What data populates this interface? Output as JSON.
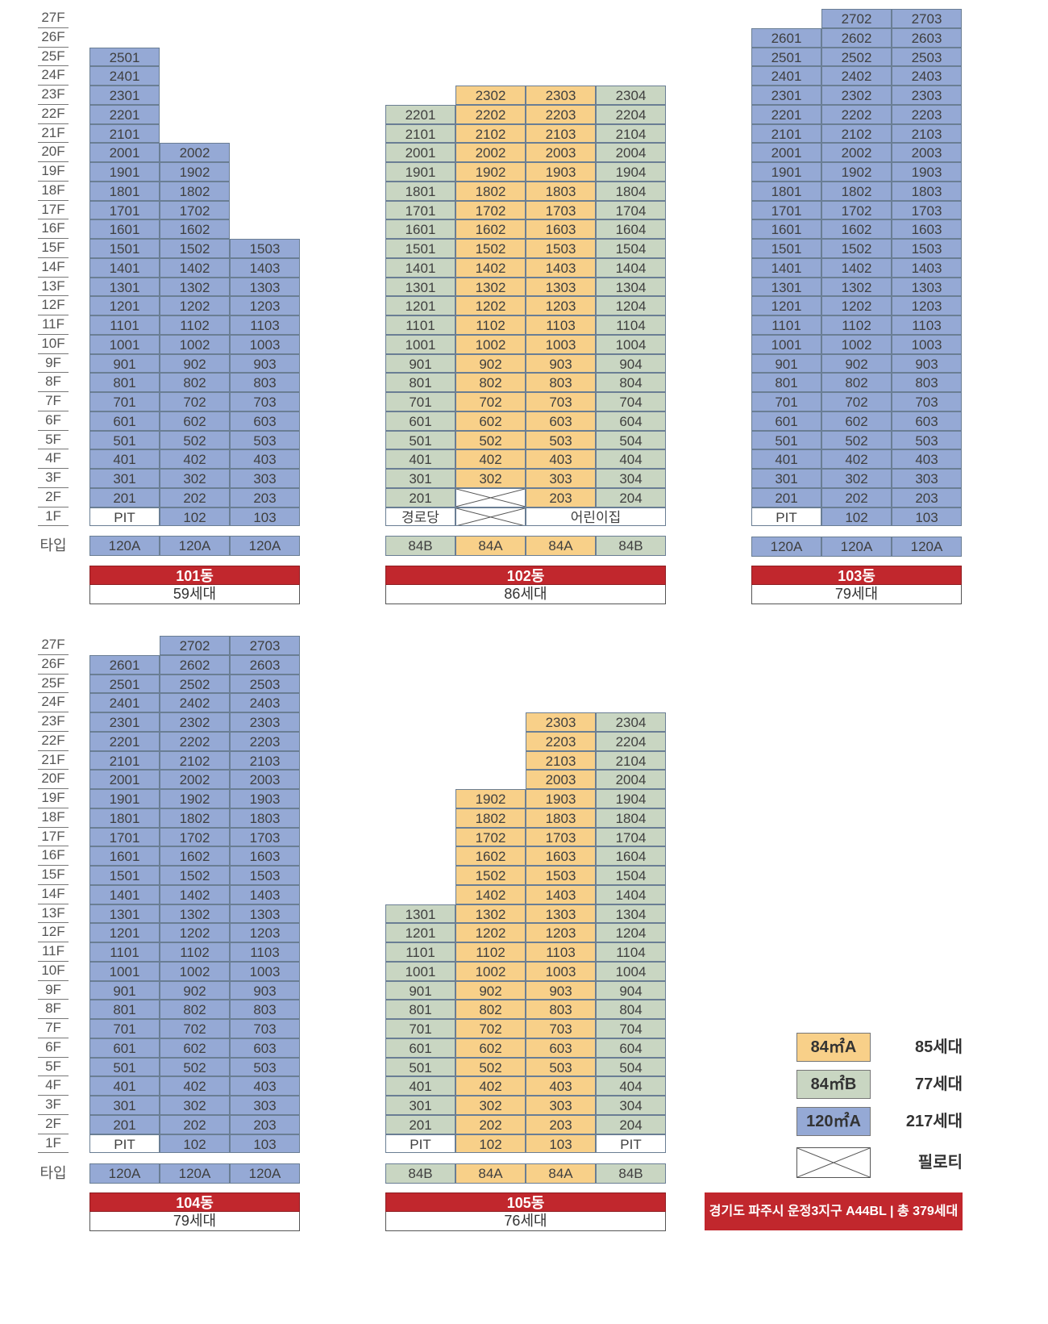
{
  "colors": {
    "120A": "#95a9d5",
    "84A": "#f8d089",
    "84B": "#c9d6c2"
  },
  "floors": [
    "27F",
    "26F",
    "25F",
    "24F",
    "23F",
    "22F",
    "21F",
    "20F",
    "19F",
    "18F",
    "17F",
    "16F",
    "15F",
    "14F",
    "13F",
    "12F",
    "11F",
    "10F",
    "9F",
    "8F",
    "7F",
    "6F",
    "5F",
    "4F",
    "3F",
    "2F",
    "1F"
  ],
  "type_row_label": "타입",
  "pilotis_icon": "x-cross-box-icon",
  "buildings": [
    {
      "id": "101",
      "name": "101동",
      "units": "59세대",
      "column_types": [
        "120A",
        "120A",
        "120A"
      ],
      "type_labels": [
        "120A",
        "120A",
        "120A"
      ],
      "top_floors": [
        25,
        20,
        15
      ],
      "first_floor": [
        {
          "label": "PIT",
          "kind": "white"
        },
        {
          "label": "102",
          "kind": "unit"
        },
        {
          "label": "103",
          "kind": "unit"
        }
      ]
    },
    {
      "id": "102",
      "name": "102동",
      "units": "86세대",
      "column_types": [
        "84B",
        "84A",
        "84A",
        "84B"
      ],
      "type_labels": [
        "84B",
        "84A",
        "84A",
        "84B"
      ],
      "top_floors": [
        22,
        23,
        23,
        23
      ],
      "second_floor_pilotis": [
        false,
        true,
        false,
        false
      ],
      "first_floor": [
        {
          "label": "경로당",
          "kind": "white",
          "span": 1
        },
        {
          "label": "",
          "kind": "pilotis",
          "span": 1
        },
        {
          "label": "어린이집",
          "kind": "white",
          "span": 2
        }
      ]
    },
    {
      "id": "103",
      "name": "103동",
      "units": "79세대",
      "column_types": [
        "120A",
        "120A",
        "120A"
      ],
      "type_labels": [
        "120A",
        "120A",
        "120A"
      ],
      "top_floors": [
        26,
        27,
        27
      ],
      "first_floor": [
        {
          "label": "PIT",
          "kind": "white"
        },
        {
          "label": "102",
          "kind": "unit"
        },
        {
          "label": "103",
          "kind": "unit"
        }
      ]
    },
    {
      "id": "104",
      "name": "104동",
      "units": "79세대",
      "column_types": [
        "120A",
        "120A",
        "120A"
      ],
      "type_labels": [
        "120A",
        "120A",
        "120A"
      ],
      "top_floors": [
        26,
        27,
        27
      ],
      "first_floor": [
        {
          "label": "PIT",
          "kind": "white"
        },
        {
          "label": "102",
          "kind": "unit"
        },
        {
          "label": "103",
          "kind": "unit"
        }
      ]
    },
    {
      "id": "105",
      "name": "105동",
      "units": "76세대",
      "column_types": [
        "84B",
        "84A",
        "84A",
        "84B"
      ],
      "type_labels": [
        "84B",
        "84A",
        "84A",
        "84B"
      ],
      "top_floors": [
        13,
        19,
        23,
        23
      ],
      "first_floor": [
        {
          "label": "PIT",
          "kind": "white"
        },
        {
          "label": "102",
          "kind": "unit"
        },
        {
          "label": "103",
          "kind": "unit"
        },
        {
          "label": "PIT",
          "kind": "white"
        }
      ]
    }
  ],
  "legend": [
    {
      "label": "84㎡A",
      "count": "85세대",
      "type": "84A"
    },
    {
      "label": "84㎡B",
      "count": "77세대",
      "type": "84B"
    },
    {
      "label": "120㎡A",
      "count": "217세대",
      "type": "120A"
    },
    {
      "label": "",
      "count": "필로티",
      "type": "pilotis"
    }
  ],
  "footer": "경기도 파주시 운정3지구 A44BL | 총 379세대"
}
